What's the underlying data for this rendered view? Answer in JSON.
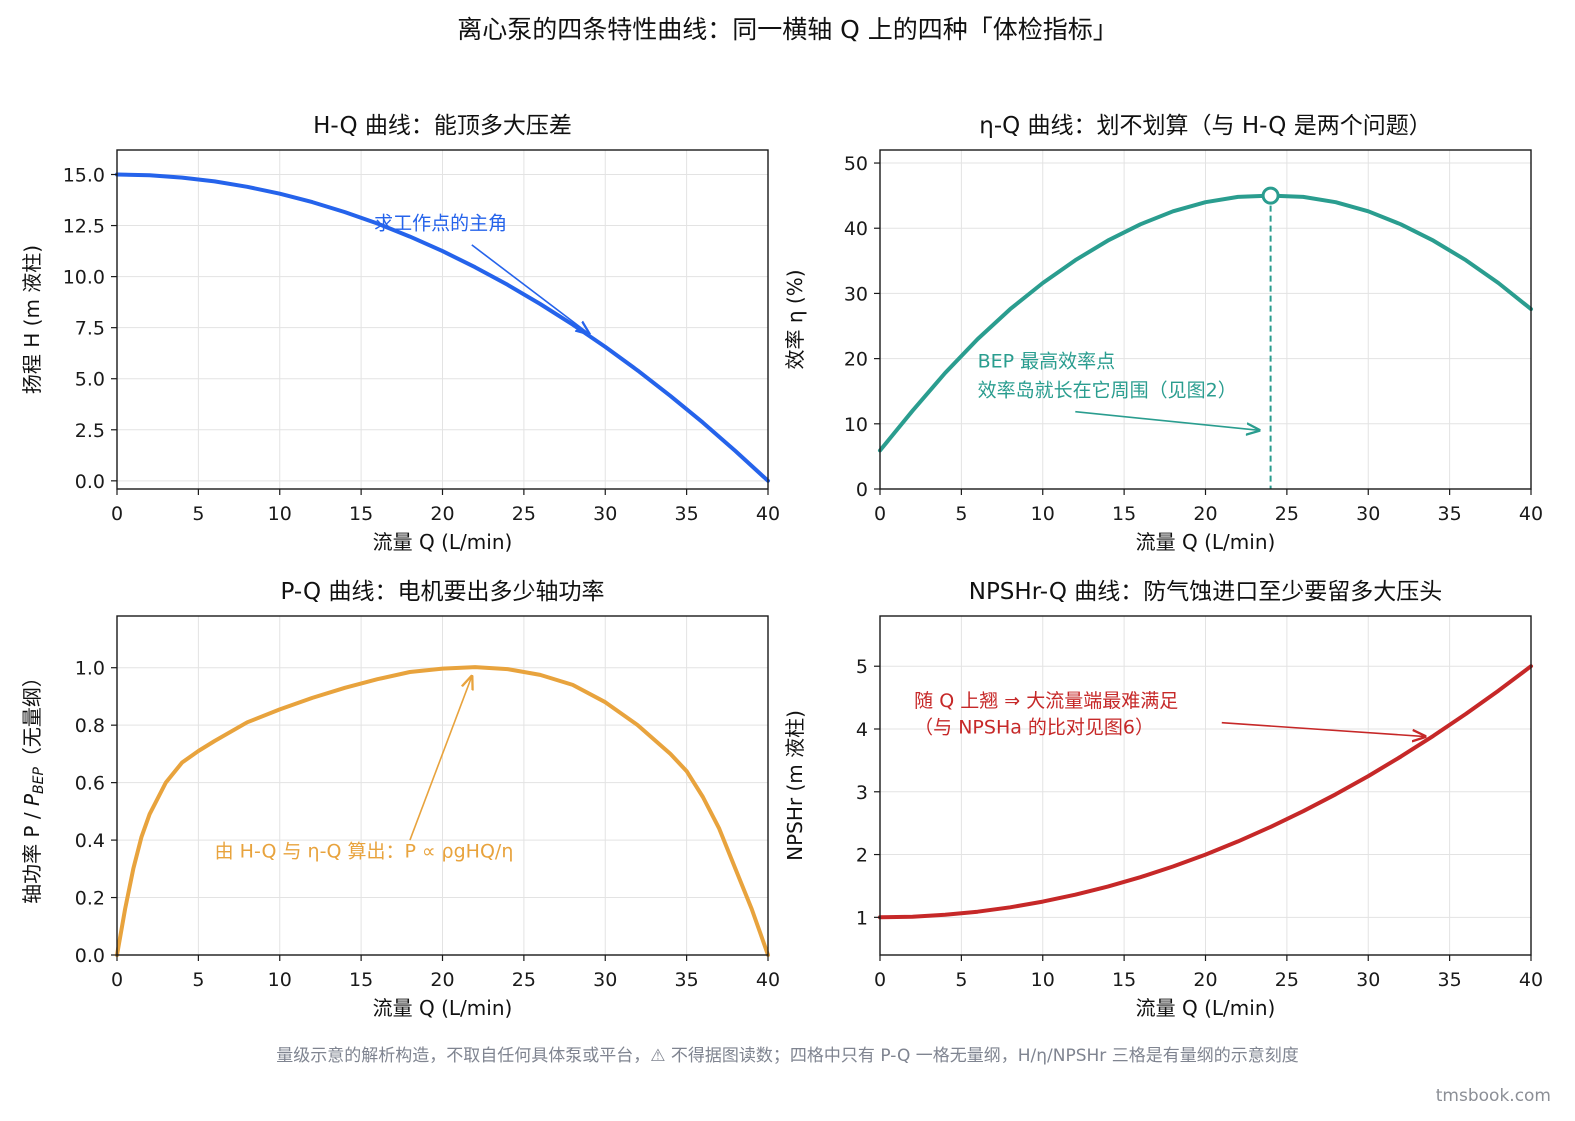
{
  "figure": {
    "title": "离心泵的四条特性曲线：同一横轴 Q 上的四种「体检指标」",
    "footnote": "量级示意的解析构造，不取自任何具体泵或平台，⚠ 不得据图读数；四格中只有 P-Q 一格无量纲，H/η/NPSHr 三格是有量纲的示意刻度",
    "watermark": "tmsbook.com"
  },
  "colors": {
    "hq": "#2563eb",
    "eta": "#2a9d8f",
    "pq": "#e8a33d",
    "npsh": "#c62828",
    "grid": "#e3e3e3",
    "axis": "#1a1a1a"
  },
  "chart_data": [
    {
      "id": "hq",
      "type": "line",
      "title": "H-Q 曲线：能顶多大压差",
      "xlabel": "流量 Q (L/min)",
      "ylabel": "扬程 H (m 液柱)",
      "xlim": [
        0,
        40
      ],
      "ylim": [
        -0.4,
        16.2
      ],
      "xticks": [
        0,
        5,
        10,
        15,
        20,
        25,
        30,
        35,
        40
      ],
      "yticks": [
        0,
        2.5,
        5,
        7.5,
        10,
        12.5,
        15
      ],
      "xtick_labels": [
        "0",
        "5",
        "10",
        "15",
        "20",
        "25",
        "30",
        "35",
        "40"
      ],
      "ytick_labels": [
        "0.0",
        "2.5",
        "5.0",
        "7.5",
        "10.0",
        "12.5",
        "15.0"
      ],
      "grid": true,
      "series": [
        {
          "x": [
            0,
            2,
            4,
            6,
            8,
            10,
            12,
            14,
            16,
            18,
            20,
            22,
            24,
            26,
            28,
            30,
            32,
            34,
            36,
            38,
            40
          ],
          "y": [
            15.0,
            14.96,
            14.85,
            14.66,
            14.4,
            14.06,
            13.65,
            13.16,
            12.6,
            11.96,
            11.25,
            10.46,
            9.6,
            8.66,
            7.65,
            6.56,
            5.4,
            4.16,
            2.85,
            1.46,
            0.0
          ]
        }
      ],
      "annotations": [
        {
          "text": "求工作点的主角",
          "x": 15.8,
          "y": 12.3,
          "arrow_to": [
            29,
            7.2
          ]
        }
      ]
    },
    {
      "id": "eta",
      "type": "line",
      "title": "η-Q 曲线：划不划算（与 H-Q 是两个问题）",
      "xlabel": "流量 Q (L/min)",
      "ylabel": "效率 η (%)",
      "xlim": [
        0,
        40
      ],
      "ylim": [
        0,
        52
      ],
      "xticks": [
        0,
        5,
        10,
        15,
        20,
        25,
        30,
        35,
        40
      ],
      "yticks": [
        0,
        10,
        20,
        30,
        40,
        50
      ],
      "xtick_labels": [
        "0",
        "5",
        "10",
        "15",
        "20",
        "25",
        "30",
        "35",
        "40"
      ],
      "ytick_labels": [
        "0",
        "10",
        "20",
        "30",
        "40",
        "50"
      ],
      "grid": true,
      "series": [
        {
          "x": [
            0,
            2,
            4,
            6,
            8,
            10,
            12,
            14,
            16,
            18,
            20,
            22,
            24,
            26,
            28,
            30,
            32,
            34,
            36,
            38,
            40
          ],
          "y": [
            5.9,
            12.0,
            17.8,
            23.0,
            27.6,
            31.6,
            35.1,
            38.1,
            40.6,
            42.6,
            44.0,
            44.8,
            45.0,
            44.8,
            44.0,
            42.6,
            40.6,
            38.1,
            35.1,
            31.6,
            27.6
          ]
        }
      ],
      "bep": {
        "x": 24,
        "y": 45
      },
      "annotations": [
        {
          "text": "BEP 最高效率点",
          "x": 6,
          "y": 18.6
        },
        {
          "text": "效率岛就长在它周围（见图2）",
          "x": 6,
          "y": 14.2,
          "arrow_to": [
            23.3,
            9
          ]
        }
      ]
    },
    {
      "id": "pq",
      "type": "line",
      "title": "P-Q 曲线：电机要出多少轴功率",
      "xlabel": "流量 Q (L/min)",
      "ylabel": "轴功率 P / P_BEP（无量纲）",
      "ylabel_main": "轴功率 P / ",
      "ylabel_sym": "P",
      "ylabel_sub": "BEP",
      "ylabel_tail": "（无量纲）",
      "xlim": [
        0,
        40
      ],
      "ylim": [
        0,
        1.18
      ],
      "xticks": [
        0,
        5,
        10,
        15,
        20,
        25,
        30,
        35,
        40
      ],
      "yticks": [
        0,
        0.2,
        0.4,
        0.6,
        0.8,
        1.0
      ],
      "xtick_labels": [
        "0",
        "5",
        "10",
        "15",
        "20",
        "25",
        "30",
        "35",
        "40"
      ],
      "ytick_labels": [
        "0.0",
        "0.2",
        "0.4",
        "0.6",
        "0.8",
        "1.0"
      ],
      "grid": true,
      "series": [
        {
          "x": [
            0,
            0.5,
            1,
            1.5,
            2,
            3,
            4,
            5,
            6,
            8,
            10,
            12,
            14,
            16,
            18,
            20,
            22,
            24,
            26,
            28,
            30,
            32,
            34,
            35,
            36,
            37,
            38,
            39,
            39.5,
            40
          ],
          "y": [
            0.0,
            0.16,
            0.3,
            0.41,
            0.49,
            0.6,
            0.67,
            0.71,
            0.745,
            0.81,
            0.855,
            0.895,
            0.93,
            0.96,
            0.985,
            0.997,
            1.002,
            0.995,
            0.975,
            0.94,
            0.88,
            0.8,
            0.7,
            0.64,
            0.55,
            0.44,
            0.3,
            0.16,
            0.08,
            0.0
          ]
        }
      ],
      "annotations": [
        {
          "text": "由 H-Q 与 η-Q 算出：P ∝ ρgHQ/η",
          "x": 6,
          "y": 0.34,
          "arrow_from": [
            18,
            0.4
          ],
          "arrow_to": [
            21.8,
            0.97
          ]
        }
      ]
    },
    {
      "id": "npsh",
      "type": "line",
      "title": "NPSHr-Q 曲线：防气蚀进口至少要留多大压头",
      "xlabel": "流量 Q (L/min)",
      "ylabel": "NPSHr (m 液柱)",
      "xlim": [
        0,
        40
      ],
      "ylim": [
        0.4,
        5.8
      ],
      "xticks": [
        0,
        5,
        10,
        15,
        20,
        25,
        30,
        35,
        40
      ],
      "yticks": [
        1,
        2,
        3,
        4,
        5
      ],
      "xtick_labels": [
        "0",
        "5",
        "10",
        "15",
        "20",
        "25",
        "30",
        "35",
        "40"
      ],
      "ytick_labels": [
        "1",
        "2",
        "3",
        "4",
        "5"
      ],
      "grid": true,
      "series": [
        {
          "x": [
            0,
            2,
            4,
            6,
            8,
            10,
            12,
            14,
            16,
            18,
            20,
            22,
            24,
            26,
            28,
            30,
            32,
            34,
            36,
            38,
            40
          ],
          "y": [
            1.0,
            1.01,
            1.04,
            1.09,
            1.16,
            1.25,
            1.36,
            1.49,
            1.64,
            1.81,
            2.0,
            2.21,
            2.44,
            2.69,
            2.96,
            3.25,
            3.56,
            3.89,
            4.24,
            4.61,
            5.0
          ]
        }
      ],
      "annotations": [
        {
          "text": "随 Q 上翘 ⇒ 大流量端最难满足",
          "x": 2.1,
          "y": 4.35
        },
        {
          "text": "（与 NPSHa 的比对见图6）",
          "x": 2.1,
          "y": 3.93,
          "arrow_from": [
            21,
            4.1
          ],
          "arrow_to": [
            33.5,
            3.88
          ]
        }
      ]
    }
  ]
}
